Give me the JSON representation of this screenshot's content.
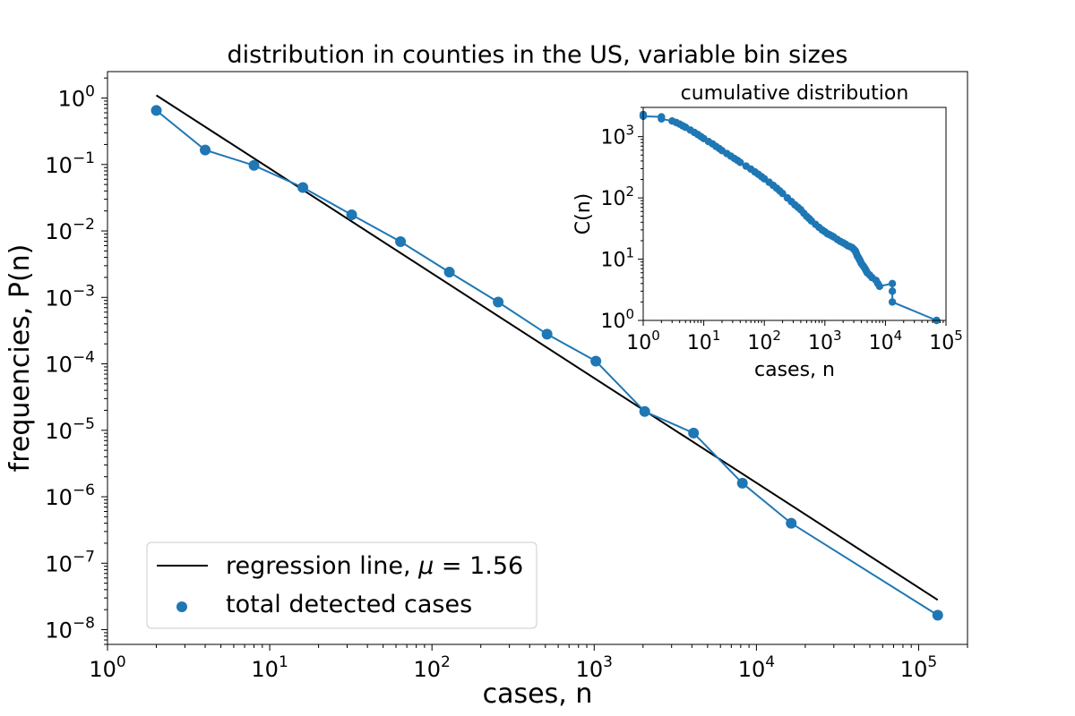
{
  "chart_data": [
    {
      "type": "scatter",
      "title": "distribution in counties in the US, variable bin sizes",
      "xlabel": "cases, n",
      "ylabel": "frequencies, P(n)",
      "xscale": "log",
      "yscale": "log",
      "xlim": [
        1,
        200000
      ],
      "ylim": [
        6e-09,
        2.5
      ],
      "xticks": [
        {
          "value": 1,
          "base": "10",
          "exp": "0"
        },
        {
          "value": 10,
          "base": "10",
          "exp": "1"
        },
        {
          "value": 100,
          "base": "10",
          "exp": "2"
        },
        {
          "value": 1000,
          "base": "10",
          "exp": "3"
        },
        {
          "value": 10000,
          "base": "10",
          "exp": "4"
        },
        {
          "value": 100000,
          "base": "10",
          "exp": "5"
        }
      ],
      "yticks": [
        {
          "value": 1,
          "base": "10",
          "exp": "0"
        },
        {
          "value": 0.1,
          "base": "10",
          "exp": "−1"
        },
        {
          "value": 0.01,
          "base": "10",
          "exp": "−2"
        },
        {
          "value": 0.001,
          "base": "10",
          "exp": "−3"
        },
        {
          "value": 0.0001,
          "base": "10",
          "exp": "−4"
        },
        {
          "value": 1e-05,
          "base": "10",
          "exp": "−5"
        },
        {
          "value": 1e-06,
          "base": "10",
          "exp": "−6"
        },
        {
          "value": 1e-07,
          "base": "10",
          "exp": "−7"
        },
        {
          "value": 1e-08,
          "base": "10",
          "exp": "−8"
        }
      ],
      "series": [
        {
          "name": "total detected cases",
          "color": "#1f77b4",
          "x": [
            2,
            4,
            8,
            16,
            32,
            64,
            128,
            256,
            512,
            1024,
            2048,
            4096,
            8192,
            16384,
            131072
          ],
          "y": [
            0.65,
            0.165,
            0.097,
            0.045,
            0.0175,
            0.0069,
            0.0024,
            0.00085,
            0.00028,
            0.00011,
            1.92e-05,
            9.1e-06,
            1.6e-06,
            4e-07,
            1.65e-08
          ]
        },
        {
          "name": "regression line",
          "color": "#000000",
          "x": [
            2,
            131072
          ],
          "y": [
            1.1,
            2.8e-08
          ]
        }
      ],
      "legend": {
        "position": "lower-left",
        "entries": [
          {
            "prefix": "regression line, ",
            "symbol": "μ",
            "suffix": " = 1.56"
          },
          {
            "label": "total detected cases"
          }
        ]
      }
    },
    {
      "type": "line",
      "title": "cumulative distribution",
      "xlabel": "cases, n",
      "ylabel": "C(n)",
      "xscale": "log",
      "yscale": "log",
      "xlim": [
        1,
        100000
      ],
      "ylim": [
        1,
        3000
      ],
      "xticks": [
        {
          "value": 1,
          "base": "10",
          "exp": "0"
        },
        {
          "value": 10,
          "base": "10",
          "exp": "1"
        },
        {
          "value": 100,
          "base": "10",
          "exp": "2"
        },
        {
          "value": 1000,
          "base": "10",
          "exp": "3"
        },
        {
          "value": 10000,
          "base": "10",
          "exp": "4"
        },
        {
          "value": 100000,
          "base": "10",
          "exp": "5"
        }
      ],
      "yticks": [
        {
          "value": 1,
          "base": "10",
          "exp": "0"
        },
        {
          "value": 10,
          "base": "10",
          "exp": "1"
        },
        {
          "value": 100,
          "base": "10",
          "exp": "2"
        },
        {
          "value": 1000,
          "base": "10",
          "exp": "3"
        }
      ],
      "series": [
        {
          "name": "cumulative distribution",
          "color": "#1f77b4",
          "x": [
            1,
            1,
            2,
            2,
            3,
            3.5,
            4,
            4.5,
            5,
            6,
            7,
            8,
            9,
            10,
            12,
            14,
            16,
            18,
            20,
            24,
            28,
            32,
            36,
            40,
            50,
            60,
            70,
            80,
            90,
            100,
            120,
            140,
            160,
            180,
            200,
            240,
            280,
            320,
            360,
            400,
            450,
            500,
            550,
            600,
            700,
            800,
            900,
            1000,
            1100,
            1200,
            1300,
            1400,
            1600,
            1800,
            2000,
            2200,
            2400,
            2600,
            2800,
            3000,
            3100,
            3200,
            3300,
            3400,
            3500,
            3600,
            3700,
            3800,
            3900,
            4000,
            4200,
            4400,
            4600,
            4800,
            5000,
            5500,
            6000,
            7000,
            7500,
            8000,
            13000,
            13000,
            13000,
            70000
          ],
          "y": [
            2300,
            2150,
            2100,
            1950,
            1800,
            1700,
            1600,
            1500,
            1420,
            1280,
            1170,
            1080,
            1000,
            930,
            830,
            760,
            690,
            640,
            590,
            530,
            480,
            440,
            410,
            380,
            330,
            295,
            265,
            242,
            222,
            205,
            180,
            160,
            144,
            130,
            118,
            100,
            87,
            77,
            70,
            64,
            56,
            50,
            46,
            42,
            37,
            33,
            30,
            28,
            26,
            25,
            24,
            23,
            21,
            19.5,
            18.5,
            17.5,
            16.5,
            16,
            15.5,
            14.5,
            14,
            13.5,
            12.5,
            11.5,
            11,
            10.5,
            10,
            9.5,
            9,
            8.5,
            8,
            7.5,
            7,
            6.5,
            6,
            5.5,
            5,
            4.5,
            4,
            3.6,
            4,
            3,
            2,
            1
          ]
        }
      ]
    }
  ]
}
